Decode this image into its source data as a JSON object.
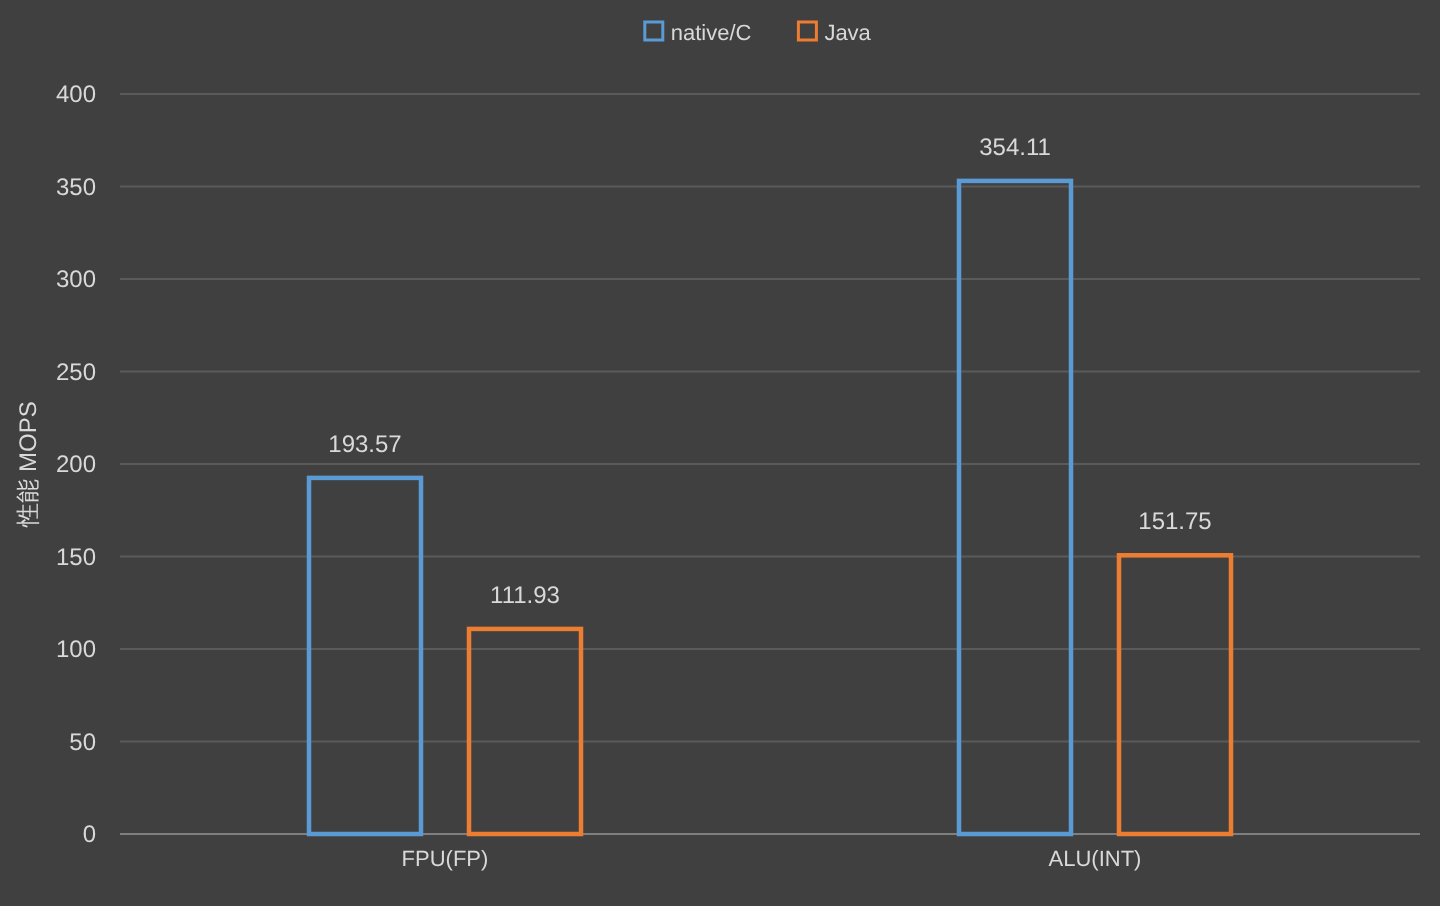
{
  "chart_data": {
    "type": "bar",
    "ylabel": "性能 MOPS",
    "categories": [
      "FPU(FP)",
      "ALU(INT)"
    ],
    "series": [
      {
        "name": "native/C",
        "color": "#5b9bd5",
        "values": [
          193.57,
          354.11
        ]
      },
      {
        "name": "Java",
        "color": "#ed7d31",
        "values": [
          111.93,
          151.75
        ]
      }
    ],
    "ylim": [
      0,
      400
    ],
    "yticks": [
      0,
      50,
      100,
      150,
      200,
      250,
      300,
      350,
      400
    ],
    "grid": "y",
    "legend": "top",
    "data_labels": true
  }
}
